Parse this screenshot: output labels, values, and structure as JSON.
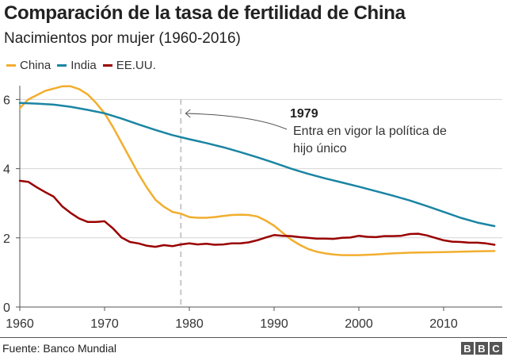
{
  "chart_data": {
    "type": "line",
    "title": "Comparación de la tasa de fertilidad de China",
    "subtitle": "Nacimientos por mujer (1960-2016)",
    "xlabel": "",
    "ylabel": "",
    "xlim": [
      1960,
      2016
    ],
    "ylim": [
      0,
      6
    ],
    "x_ticks": [
      "1960",
      "1970",
      "1980",
      "1990",
      "2000",
      "2010"
    ],
    "y_ticks": [
      "0",
      "2",
      "4",
      "6"
    ],
    "grid": "horizontal",
    "legend_position": "top-left",
    "series": [
      {
        "name": "China",
        "color": "#f2ae2e",
        "x": [
          1960,
          1961,
          1963,
          1965,
          1966,
          1967,
          1968,
          1969,
          1970,
          1971,
          1972,
          1973,
          1974,
          1975,
          1976,
          1977,
          1978,
          1979,
          1980,
          1981,
          1982,
          1983,
          1984,
          1985,
          1986,
          1987,
          1988,
          1989,
          1990,
          1991,
          1992,
          1993,
          1994,
          1995,
          1996,
          1997,
          1998,
          1999,
          2000,
          2002,
          2004,
          2006,
          2008,
          2010,
          2012,
          2014,
          2016
        ],
        "y": [
          5.75,
          6.0,
          6.25,
          6.38,
          6.38,
          6.3,
          6.15,
          5.9,
          5.6,
          5.2,
          4.75,
          4.3,
          3.85,
          3.45,
          3.1,
          2.9,
          2.75,
          2.7,
          2.6,
          2.58,
          2.58,
          2.6,
          2.63,
          2.66,
          2.67,
          2.66,
          2.62,
          2.5,
          2.35,
          2.15,
          1.95,
          1.8,
          1.68,
          1.6,
          1.55,
          1.52,
          1.5,
          1.5,
          1.5,
          1.52,
          1.55,
          1.57,
          1.58,
          1.59,
          1.6,
          1.61,
          1.62
        ]
      },
      {
        "name": "India",
        "color": "#1a85a3",
        "x": [
          1960,
          1962,
          1964,
          1966,
          1968,
          1970,
          1972,
          1974,
          1976,
          1978,
          1980,
          1982,
          1984,
          1986,
          1988,
          1990,
          1992,
          1994,
          1996,
          1998,
          2000,
          2002,
          2004,
          2006,
          2008,
          2010,
          2012,
          2014,
          2016
        ],
        "y": [
          5.9,
          5.88,
          5.85,
          5.79,
          5.7,
          5.6,
          5.45,
          5.28,
          5.12,
          4.97,
          4.85,
          4.74,
          4.62,
          4.48,
          4.33,
          4.17,
          4.0,
          3.85,
          3.72,
          3.6,
          3.48,
          3.35,
          3.22,
          3.08,
          2.92,
          2.75,
          2.58,
          2.44,
          2.34
        ]
      },
      {
        "name": "EE.UU.",
        "color": "#990000",
        "x": [
          1960,
          1961,
          1962,
          1963,
          1964,
          1965,
          1966,
          1967,
          1968,
          1969,
          1970,
          1971,
          1972,
          1973,
          1974,
          1975,
          1976,
          1977,
          1978,
          1979,
          1980,
          1981,
          1982,
          1983,
          1984,
          1985,
          1986,
          1987,
          1988,
          1989,
          1990,
          1991,
          1992,
          1993,
          1994,
          1995,
          1996,
          1997,
          1998,
          1999,
          2000,
          2001,
          2002,
          2003,
          2004,
          2005,
          2006,
          2007,
          2008,
          2009,
          2010,
          2011,
          2012,
          2013,
          2014,
          2015,
          2016
        ],
        "y": [
          3.65,
          3.62,
          3.46,
          3.32,
          3.19,
          2.91,
          2.72,
          2.56,
          2.46,
          2.46,
          2.48,
          2.27,
          2.01,
          1.88,
          1.84,
          1.77,
          1.74,
          1.79,
          1.76,
          1.81,
          1.84,
          1.81,
          1.83,
          1.8,
          1.81,
          1.84,
          1.84,
          1.87,
          1.93,
          2.01,
          2.08,
          2.06,
          2.05,
          2.02,
          2.0,
          1.98,
          1.98,
          1.97,
          2.0,
          2.01,
          2.06,
          2.03,
          2.02,
          2.05,
          2.05,
          2.06,
          2.11,
          2.12,
          2.07,
          2.0,
          1.93,
          1.89,
          1.88,
          1.86,
          1.86,
          1.84,
          1.8
        ]
      }
    ],
    "annotations": [
      {
        "x": 1979,
        "label": "1979",
        "text_lines": [
          "Entra en vigor la política de",
          "hijo único"
        ]
      }
    ]
  },
  "footer": {
    "source": "Fuente: Banco Mundial",
    "logo": [
      "B",
      "B",
      "C"
    ]
  }
}
